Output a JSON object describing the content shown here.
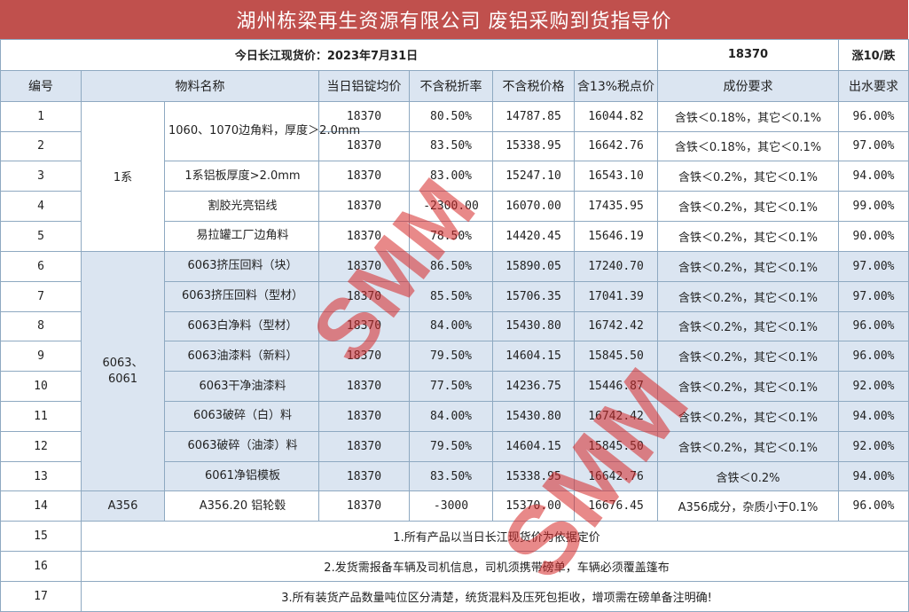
{
  "title": "湖州栋梁再生资源有限公司 废铝采购到货指导价",
  "spot": {
    "label": "今日长江现货价：2023年7月31日",
    "price": "18370",
    "change": "涨10/跌"
  },
  "headers": [
    "编号",
    "物料名称",
    "当日铝锭均价",
    "不含税折率",
    "不含税价格",
    "含13%税点价",
    "成份要求",
    "出水要求"
  ],
  "groups": [
    "1系",
    "6063、\n6061",
    "A356"
  ],
  "rows": [
    {
      "no": "1",
      "name": "1060、1070边角料，厚度＞2.0mm",
      "avg": "18370",
      "rate": "80.50%",
      "notax": "14787.85",
      "tax": "16044.82",
      "comp": "含铁＜0.18%，其它＜0.1%",
      "water": "96.00%"
    },
    {
      "no": "2",
      "name": "",
      "avg": "18370",
      "rate": "83.50%",
      "notax": "15338.95",
      "tax": "16642.76",
      "comp": "含铁＜0.18%，其它＜0.1%",
      "water": "97.00%"
    },
    {
      "no": "3",
      "name": "1系铝板厚度>2.0mm",
      "avg": "18370",
      "rate": "83.00%",
      "notax": "15247.10",
      "tax": "16543.10",
      "comp": "含铁＜0.2%，其它＜0.1%",
      "water": "94.00%"
    },
    {
      "no": "4",
      "name": "割胶光亮铝线",
      "avg": "18370",
      "rate": "-2300.00",
      "notax": "16070.00",
      "tax": "17435.95",
      "comp": "含铁＜0.2%，其它＜0.1%",
      "water": "99.00%"
    },
    {
      "no": "5",
      "name": "易拉罐工厂边角料",
      "avg": "18370",
      "rate": "78.50%",
      "notax": "14420.45",
      "tax": "15646.19",
      "comp": "含铁＜0.2%，其它＜0.1%",
      "water": "90.00%"
    },
    {
      "no": "6",
      "name": "6063挤压回料（块）",
      "avg": "18370",
      "rate": "86.50%",
      "notax": "15890.05",
      "tax": "17240.70",
      "comp": "含铁＜0.2%，其它＜0.1%",
      "water": "97.00%"
    },
    {
      "no": "7",
      "name": "6063挤压回料（型材）",
      "avg": "18370",
      "rate": "85.50%",
      "notax": "15706.35",
      "tax": "17041.39",
      "comp": "含铁＜0.2%，其它＜0.1%",
      "water": "97.00%"
    },
    {
      "no": "8",
      "name": "6063白净料（型材）",
      "avg": "18370",
      "rate": "84.00%",
      "notax": "15430.80",
      "tax": "16742.42",
      "comp": "含铁＜0.2%，其它＜0.1%",
      "water": "96.00%"
    },
    {
      "no": "9",
      "name": "6063油漆料（新料）",
      "avg": "18370",
      "rate": "79.50%",
      "notax": "14604.15",
      "tax": "15845.50",
      "comp": "含铁＜0.2%，其它＜0.1%",
      "water": "96.00%"
    },
    {
      "no": "10",
      "name": "6063干净油漆料",
      "avg": "18370",
      "rate": "77.50%",
      "notax": "14236.75",
      "tax": "15446.87",
      "comp": "含铁＜0.2%，其它＜0.1%",
      "water": "92.00%"
    },
    {
      "no": "11",
      "name": "6063破碎（白）料",
      "avg": "18370",
      "rate": "84.00%",
      "notax": "15430.80",
      "tax": "16742.42",
      "comp": "含铁＜0.2%，其它＜0.1%",
      "water": "94.00%"
    },
    {
      "no": "12",
      "name": "6063破碎（油漆）料",
      "avg": "18370",
      "rate": "79.50%",
      "notax": "14604.15",
      "tax": "15845.50",
      "comp": "含铁＜0.2%，其它＜0.1%",
      "water": "92.00%"
    },
    {
      "no": "13",
      "name": "6061净铝模板",
      "avg": "18370",
      "rate": "83.50%",
      "notax": "15338.95",
      "tax": "16642.76",
      "comp": "含铁＜0.2%",
      "water": "94.00%"
    },
    {
      "no": "14",
      "name": "A356.20 铝轮毂",
      "avg": "18370",
      "rate": "-3000",
      "notax": "15370.00",
      "tax": "16676.45",
      "comp": "A356成分，杂质小于0.1%",
      "water": "96.00%"
    }
  ],
  "notes": [
    {
      "no": "15",
      "text": "1.所有产品以当日长江现货价为依据定价"
    },
    {
      "no": "16",
      "text": "2.发货需报备车辆及司机信息，司机须携带磅单，车辆必须覆盖篷布"
    },
    {
      "no": "17",
      "text": "3.所有装货产品数量吨位区分清楚，统货混料及压死包拒收，增项需在磅单备注明确!"
    }
  ],
  "watermark": "SMM",
  "colors": {
    "title_bg": "#c0504d",
    "header_bg": "#dbe5f1",
    "price_green": "#2e9e3a",
    "change_red": "#e00000"
  }
}
